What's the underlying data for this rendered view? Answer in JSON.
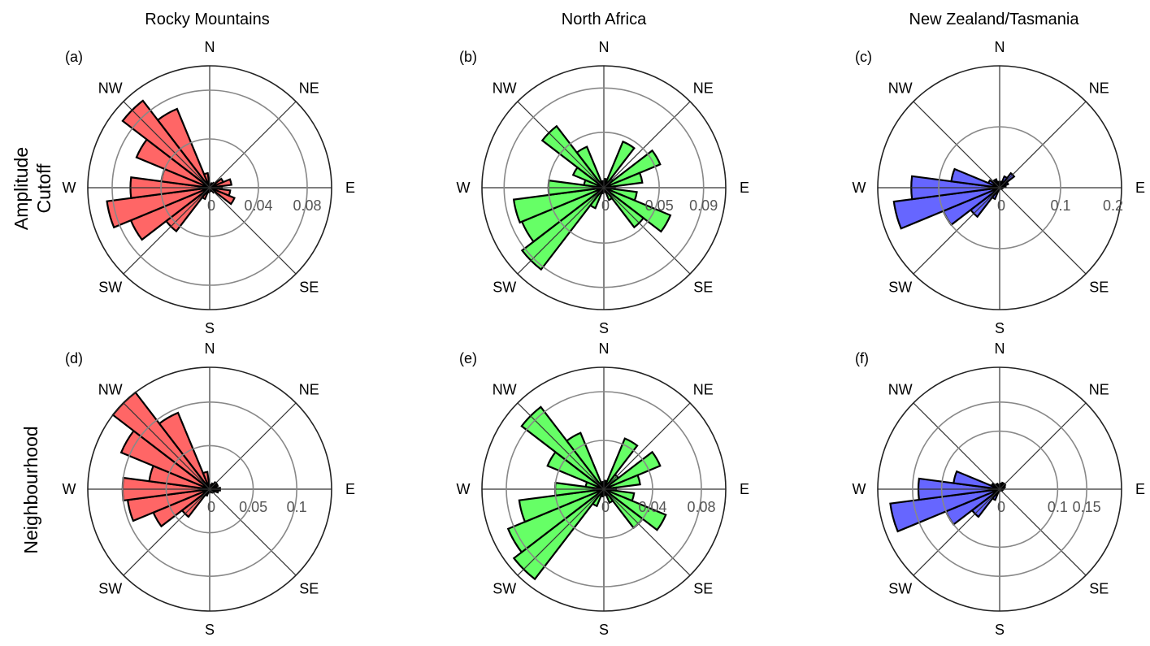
{
  "chart_data": {
    "type": "polar-bar",
    "column_titles": [
      "Rocky Mountains",
      "North Africa",
      "New Zealand/Tasmania"
    ],
    "row_labels": [
      [
        "Amplitude",
        "Cutoff"
      ],
      [
        "Neighbourhood"
      ]
    ],
    "directions": [
      "N",
      "NE",
      "E",
      "SE",
      "S",
      "SW",
      "W",
      "NW"
    ],
    "bin_centers_deg": [
      0,
      15,
      30,
      45,
      60,
      75,
      90,
      105,
      120,
      135,
      150,
      165,
      180,
      195,
      210,
      225,
      240,
      255,
      270,
      285,
      300,
      315,
      330,
      345
    ],
    "panels": [
      {
        "label": "(a)",
        "row": 0,
        "col": 0,
        "color": "#ff6666",
        "rmax": 0.1,
        "rings": [
          0.04,
          0.08
        ],
        "tick_labels": [
          "0",
          "0.04",
          "0.08"
        ],
        "values": [
          0.002,
          0.003,
          0.004,
          0.005,
          0.012,
          0.018,
          0.01,
          0.017,
          0.022,
          0.005,
          0.003,
          0.002,
          0.003,
          0.004,
          0.01,
          0.045,
          0.07,
          0.085,
          0.065,
          0.04,
          0.065,
          0.09,
          0.07,
          0.012
        ]
      },
      {
        "label": "(b)",
        "row": 0,
        "col": 1,
        "color": "#66ff66",
        "rmax": 0.11,
        "rings": [
          0.05,
          0.09
        ],
        "tick_labels": [
          "0",
          "0.05",
          "0.09"
        ],
        "values": [
          0.004,
          0.008,
          0.045,
          0.01,
          0.055,
          0.035,
          0.01,
          0.03,
          0.065,
          0.045,
          0.012,
          0.004,
          0.004,
          0.005,
          0.02,
          0.093,
          0.08,
          0.082,
          0.05,
          0.018,
          0.03,
          0.07,
          0.04,
          0.006
        ]
      },
      {
        "label": "(c)",
        "row": 0,
        "col": 2,
        "color": "#6666ff",
        "rmax": 0.2,
        "rings": [
          0.1,
          0.2
        ],
        "tick_labels": [
          "0",
          "0.1",
          "0.2"
        ],
        "values": [
          0.005,
          0.01,
          0.02,
          0.03,
          0.015,
          0.01,
          0.005,
          0.004,
          0.003,
          0.002,
          0.002,
          0.002,
          0.002,
          0.003,
          0.02,
          0.06,
          0.1,
          0.175,
          0.145,
          0.08,
          0.02,
          0.01,
          0.015,
          0.01
        ]
      },
      {
        "label": "(d)",
        "row": 1,
        "col": 0,
        "color": "#ff6666",
        "rmax": 0.14,
        "rings": [
          0.05,
          0.1
        ],
        "tick_labels": [
          "0",
          "0.05",
          "0.1"
        ],
        "values": [
          0.005,
          0.005,
          0.007,
          0.01,
          0.01,
          0.008,
          0.012,
          0.01,
          0.006,
          0.005,
          0.004,
          0.003,
          0.003,
          0.004,
          0.008,
          0.04,
          0.07,
          0.095,
          0.1,
          0.07,
          0.11,
          0.14,
          0.095,
          0.02
        ]
      },
      {
        "label": "(e)",
        "row": 1,
        "col": 1,
        "color": "#66ff66",
        "rmax": 0.1,
        "rings": [
          0.04,
          0.08
        ],
        "tick_labels": [
          "0",
          "0.04",
          "0.08"
        ],
        "values": [
          0.004,
          0.007,
          0.045,
          0.015,
          0.05,
          0.03,
          0.01,
          0.025,
          0.055,
          0.04,
          0.012,
          0.005,
          0.003,
          0.006,
          0.015,
          0.093,
          0.085,
          0.07,
          0.04,
          0.015,
          0.05,
          0.085,
          0.05,
          0.006
        ]
      },
      {
        "label": "(f)",
        "row": 1,
        "col": 2,
        "color": "#6666ff",
        "rmax": 0.21,
        "rings": [
          0.1,
          0.15
        ],
        "tick_labels": [
          "0",
          "0.1",
          "0.15"
        ],
        "values": [
          0.005,
          0.01,
          0.012,
          0.012,
          0.01,
          0.008,
          0.006,
          0.005,
          0.004,
          0.003,
          0.002,
          0.002,
          0.002,
          0.003,
          0.02,
          0.06,
          0.1,
          0.19,
          0.14,
          0.08,
          0.015,
          0.01,
          0.01,
          0.008
        ]
      }
    ]
  }
}
